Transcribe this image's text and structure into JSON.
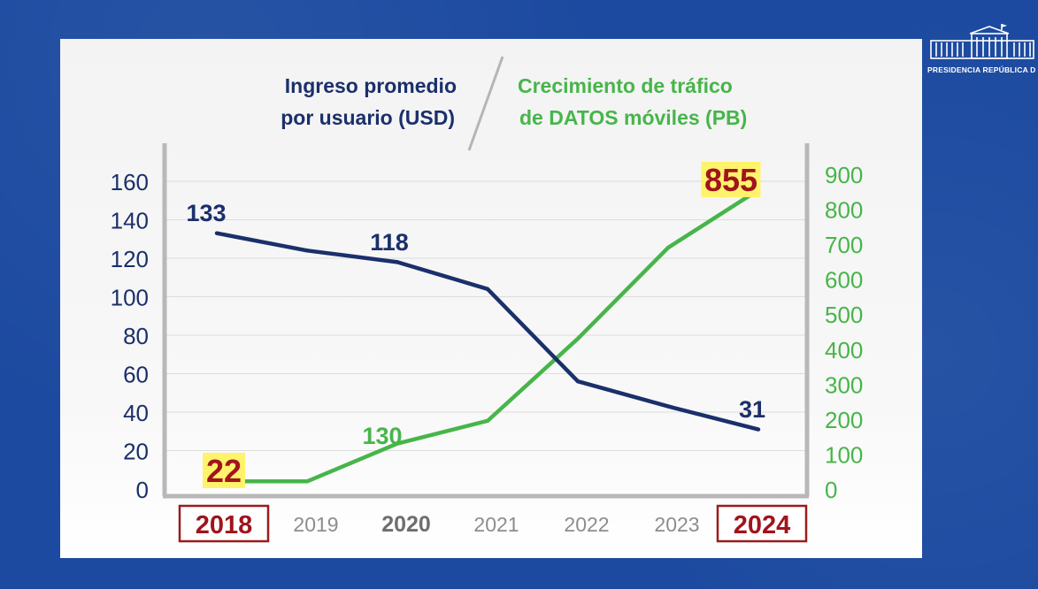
{
  "header": {
    "left_title_line1": "Ingreso promedio",
    "left_title_line2": "por usuario (USD)",
    "right_title_line1": "Crecimiento de tráfico",
    "right_title_line2": "de DATOS móviles (PB)"
  },
  "logo": {
    "text": "PRESIDENCIA REPÚBLICA D",
    "icon": "government-building-icon"
  },
  "colors": {
    "arpu": "#1b2f6b",
    "traffic": "#47b54a",
    "highlight_box": "#9b1b1b",
    "highlight_bg": "#fff36b",
    "highlight_text": "#a0141c",
    "background": "#1c4aa0"
  },
  "chart_data": {
    "type": "line",
    "categories": [
      "2018",
      "2019",
      "2020",
      "2021",
      "2022",
      "2023",
      "2024"
    ],
    "highlighted_categories": [
      "2018",
      "2024"
    ],
    "bold_categories": [
      "2020"
    ],
    "series": [
      {
        "name": "Ingreso promedio por usuario (USD)",
        "axis": "left",
        "values": [
          133,
          124,
          118,
          104,
          56,
          43,
          31
        ]
      },
      {
        "name": "Crecimiento de tráfico de DATOS móviles (PB)",
        "axis": "right",
        "values": [
          22,
          22,
          130,
          195,
          430,
          690,
          855
        ]
      }
    ],
    "data_labels": [
      {
        "series": 0,
        "index": 0,
        "text": "133",
        "highlight": false
      },
      {
        "series": 0,
        "index": 2,
        "text": "118",
        "highlight": false
      },
      {
        "series": 0,
        "index": 6,
        "text": "31",
        "highlight": false
      },
      {
        "series": 1,
        "index": 0,
        "text": "22",
        "highlight": true
      },
      {
        "series": 1,
        "index": 2,
        "text": "130",
        "highlight": false
      },
      {
        "series": 1,
        "index": 6,
        "text": "855",
        "highlight": true
      }
    ],
    "y_left": {
      "ticks": [
        0,
        20,
        40,
        60,
        80,
        100,
        120,
        140,
        160
      ],
      "range": [
        0,
        160
      ]
    },
    "y_right": {
      "ticks": [
        0,
        100,
        200,
        300,
        400,
        500,
        600,
        700,
        800,
        900
      ],
      "range": [
        0,
        900
      ]
    },
    "grid": true
  }
}
